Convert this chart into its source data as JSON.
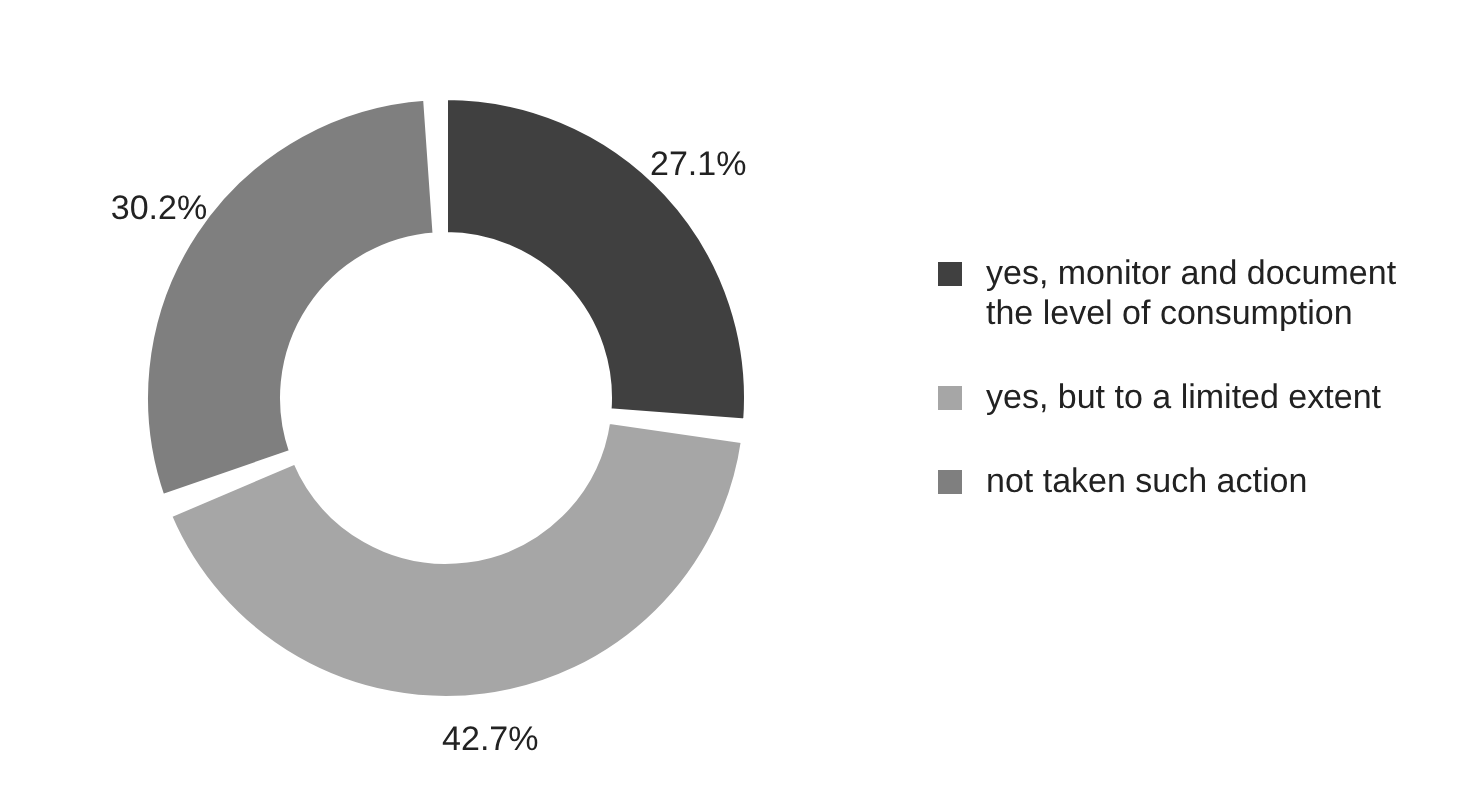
{
  "chart_data": {
    "type": "donut",
    "categories": [
      "yes, monitor and document the level of consumption",
      "yes, but to a limited extent",
      "not taken such action"
    ],
    "values": [
      27.1,
      42.7,
      30.2
    ],
    "value_labels": [
      "27.1%",
      "42.7%",
      "30.2%"
    ],
    "colors": [
      "#404040",
      "#a6a6a6",
      "#7f7f7f"
    ],
    "legend": "right"
  }
}
